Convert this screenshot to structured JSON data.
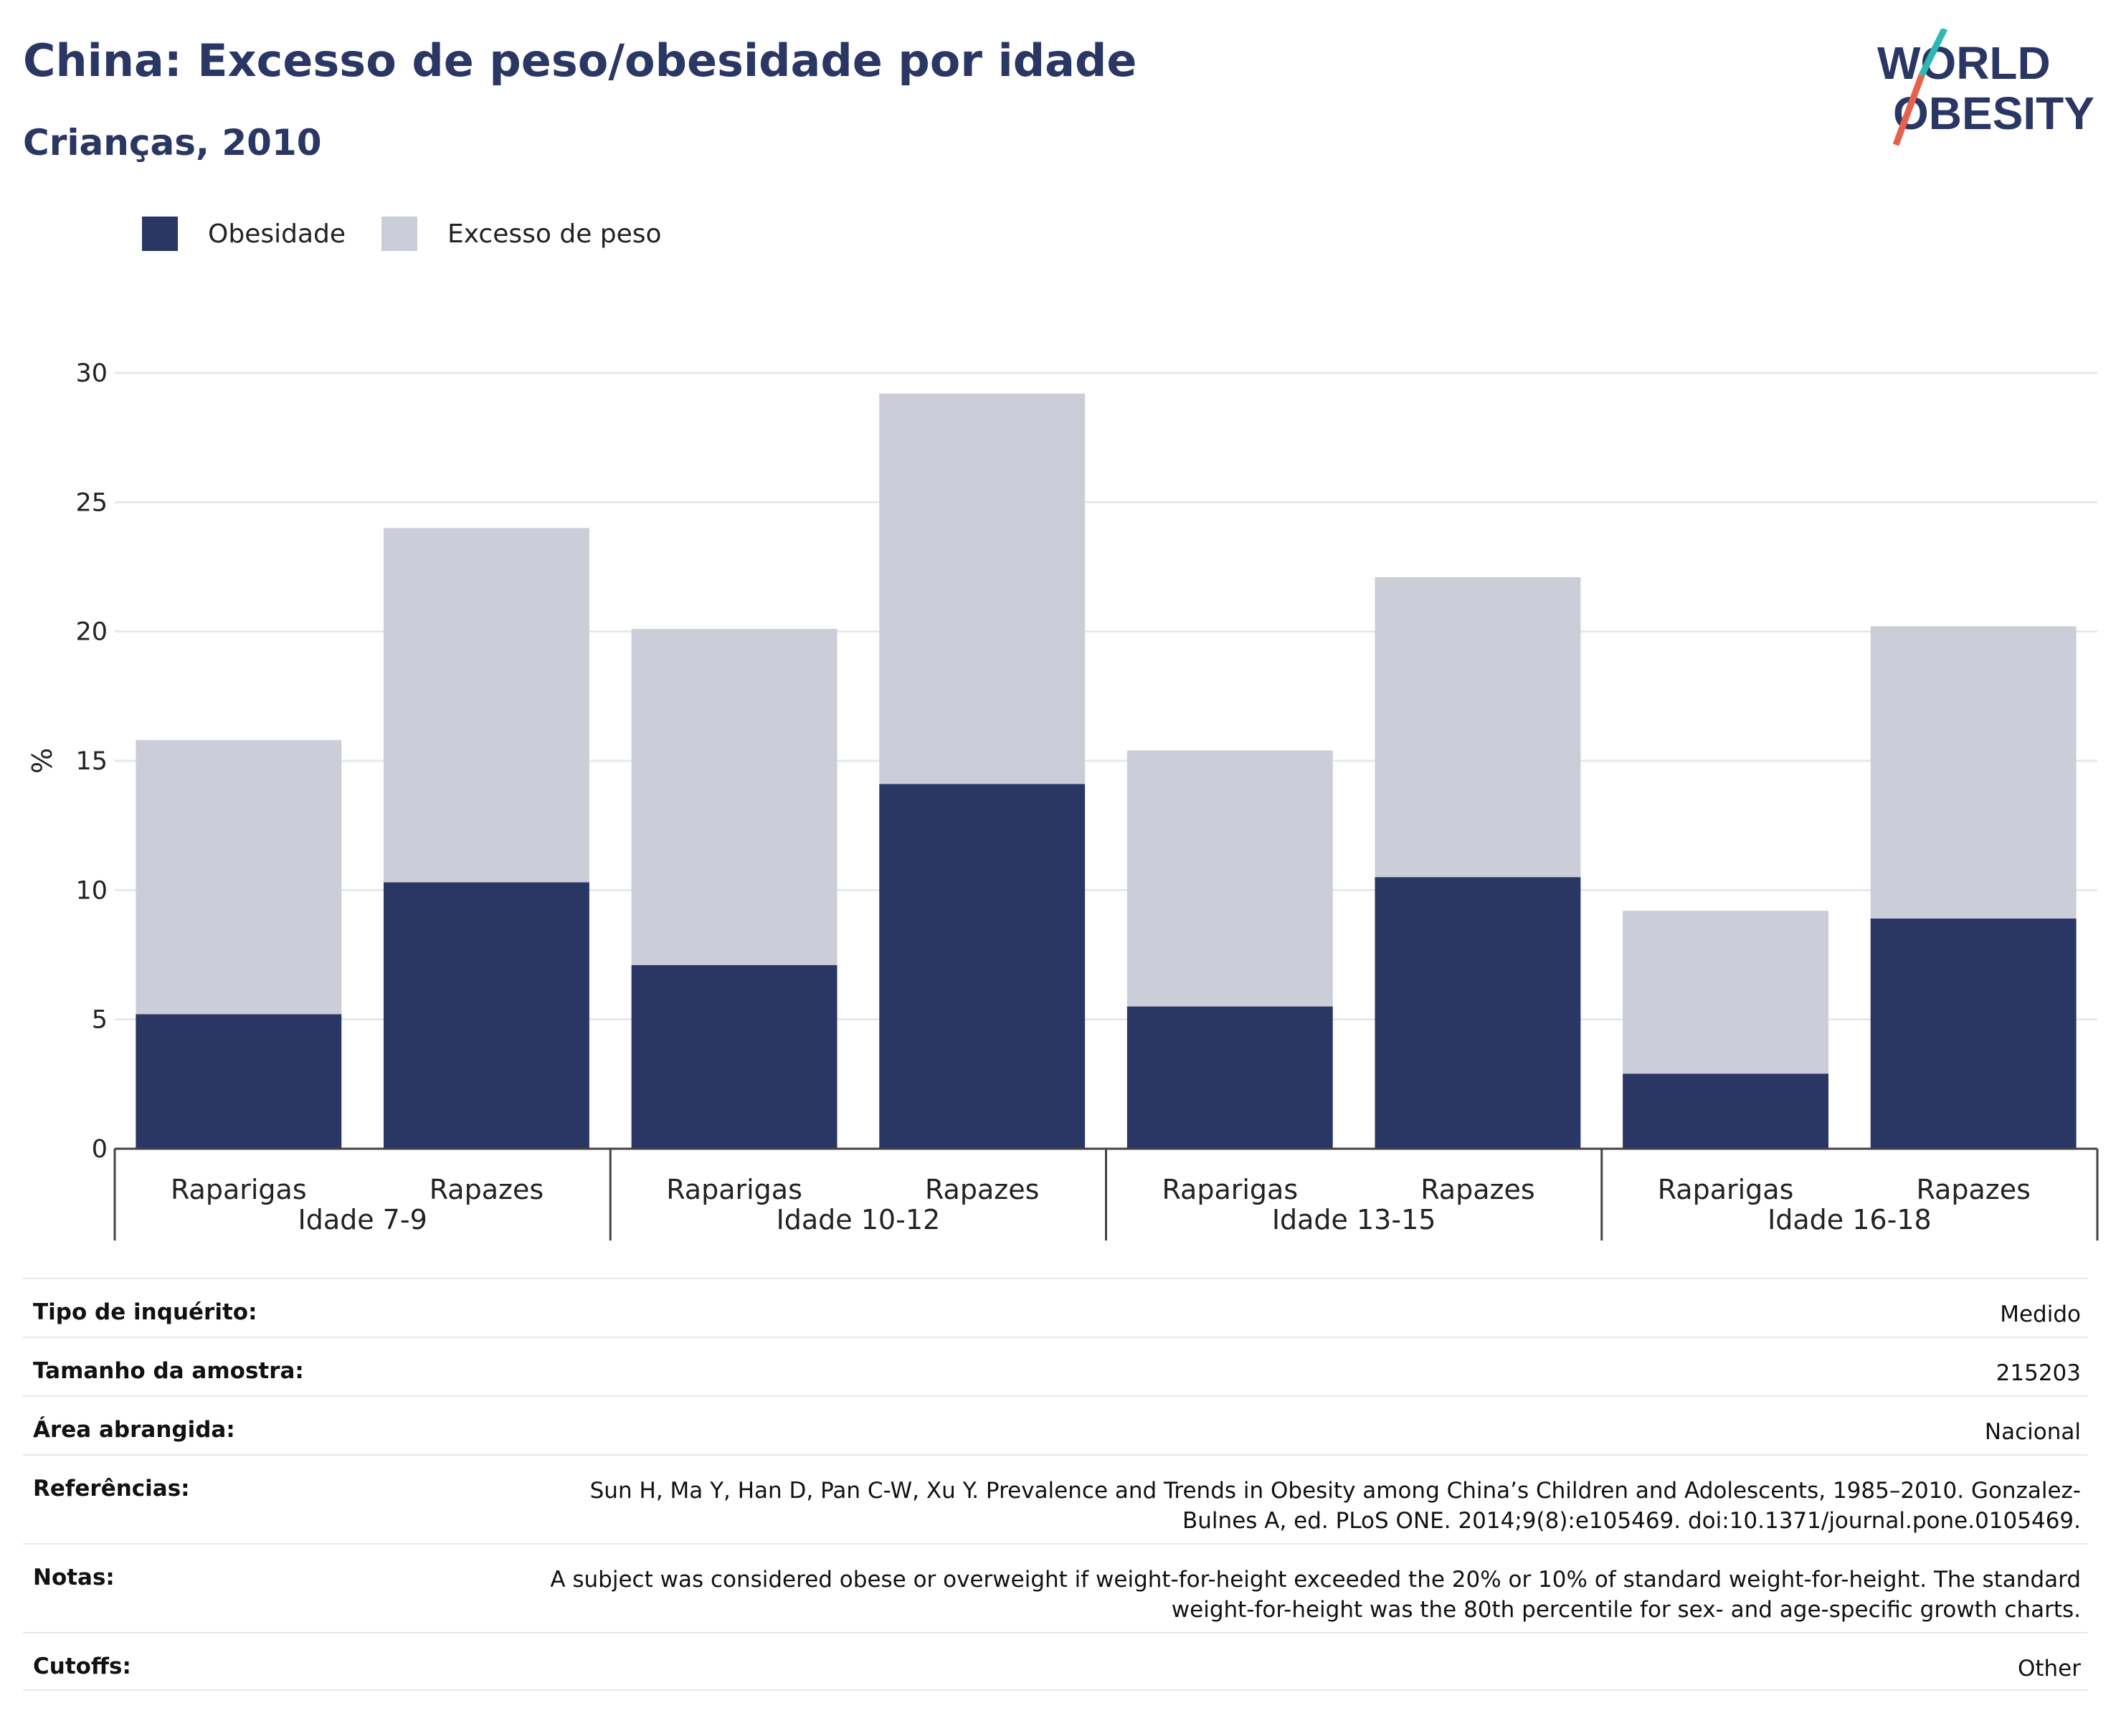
{
  "header": {
    "title": "China: Excesso de peso/obesidade por idade",
    "subtitle": "Crianças, 2010"
  },
  "logo": {
    "line1": "WORLD",
    "line2": "OBESITY",
    "slash_colors": [
      "#2fb8b3",
      "#e8604c"
    ]
  },
  "colors": {
    "obesity": "#2a3663",
    "overweight": "#cbcdd9",
    "grid": "#e6e8ef",
    "axis": "#444444"
  },
  "legend": {
    "obesity": "Obesidade",
    "overweight": "Excesso de peso"
  },
  "chart_data": {
    "type": "bar",
    "stacked": true,
    "ylabel": "%",
    "ylim": [
      0,
      30
    ],
    "yticks": [
      0,
      5,
      10,
      15,
      20,
      25,
      30
    ],
    "grid": true,
    "legend_position": "top-left",
    "groups": [
      "Idade 7-9",
      "Idade 10-12",
      "Idade 13-15",
      "Idade 16-18"
    ],
    "categories": [
      "Raparigas",
      "Rapazes",
      "Raparigas",
      "Rapazes",
      "Raparigas",
      "Rapazes",
      "Raparigas",
      "Rapazes"
    ],
    "group_index": [
      0,
      0,
      1,
      1,
      2,
      2,
      3,
      3
    ],
    "series": [
      {
        "name": "Obesidade",
        "values": [
          5.2,
          10.3,
          7.1,
          14.1,
          5.5,
          10.5,
          2.9,
          8.9
        ]
      },
      {
        "name": "Excesso de peso",
        "values": [
          10.6,
          13.7,
          13.0,
          15.1,
          9.9,
          11.6,
          6.3,
          11.3
        ]
      }
    ]
  },
  "meta": [
    {
      "label": "Tipo de inquérito:",
      "value": "Medido"
    },
    {
      "label": "Tamanho da amostra:",
      "value": "215203"
    },
    {
      "label": "Área abrangida:",
      "value": "Nacional"
    },
    {
      "label": "Referências:",
      "value": "Sun H, Ma Y, Han D, Pan C-W, Xu Y. Prevalence and Trends in Obesity among China’s Children and Adolescents, 1985–2010. Gonzalez-Bulnes A, ed. PLoS ONE. 2014;9(8):e105469. doi:10.1371/journal.pone.0105469."
    },
    {
      "label": "Notas:",
      "value": "A subject was considered obese or overweight if weight-for-height exceeded the 20% or 10% of standard weight-for-height. The standard weight-for-height was the 80th percentile for sex- and age-specific growth charts."
    },
    {
      "label": "Cutoffs:",
      "value": "Other"
    }
  ]
}
